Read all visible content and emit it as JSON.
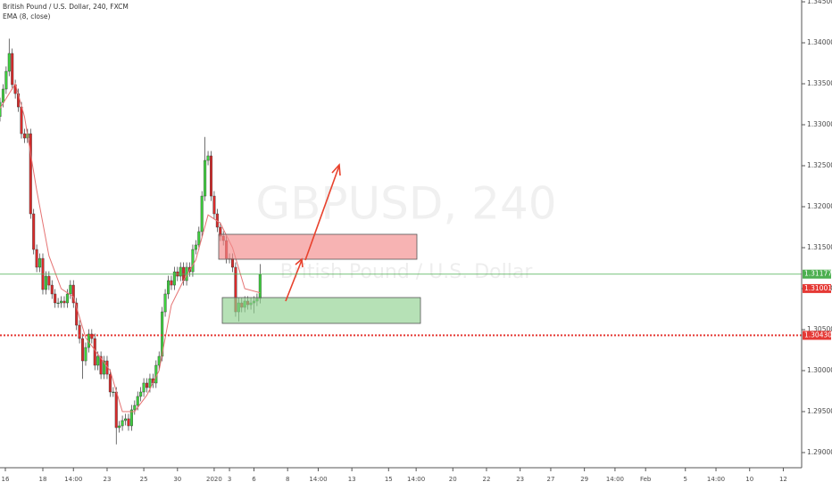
{
  "chart_data": {
    "type": "candlestick",
    "title": "British Pound / U.S. Dollar, 240, FXCM",
    "indicator": "EMA (8, close)",
    "watermark": "GBPUSD, 240",
    "watermark_subtitle": "British Pound / U.S. Dollar",
    "up_color": "#3ed13e",
    "down_color": "#d92b2b",
    "ema_color": "#e57373",
    "xlim": [
      0,
      262
    ],
    "ylim": [
      1.28815,
      1.34522
    ],
    "yticks": [
      {
        "value": 1.345,
        "label": "1.34500"
      },
      {
        "value": 1.34,
        "label": "1.34000"
      },
      {
        "value": 1.335,
        "label": "1.33500"
      },
      {
        "value": 1.33,
        "label": "1.33000"
      },
      {
        "value": 1.325,
        "label": "1.32500"
      },
      {
        "value": 1.32,
        "label": "1.32000"
      },
      {
        "value": 1.315,
        "label": "1.31500"
      },
      {
        "value": 1.31,
        "label": "1.31000"
      },
      {
        "value": 1.305,
        "label": "1.30500"
      },
      {
        "value": 1.3,
        "label": "1.30000"
      },
      {
        "value": 1.295,
        "label": "1.29500"
      },
      {
        "value": 1.29,
        "label": "1.29000"
      }
    ],
    "xticks": [
      {
        "value": 1.75,
        "label": "16"
      },
      {
        "value": 14,
        "label": "18"
      },
      {
        "value": 24,
        "label": "14:00"
      },
      {
        "value": 35,
        "label": "23"
      },
      {
        "value": 47,
        "label": "25"
      },
      {
        "value": 58,
        "label": "30"
      },
      {
        "value": 70,
        "label": "2020"
      },
      {
        "value": 75,
        "label": "3"
      },
      {
        "value": 83,
        "label": "6"
      },
      {
        "value": 94,
        "label": "8"
      },
      {
        "value": 104,
        "label": "14:00"
      },
      {
        "value": 115,
        "label": "13"
      },
      {
        "value": 127,
        "label": "15"
      },
      {
        "value": 136,
        "label": "14:00"
      },
      {
        "value": 148,
        "label": "20"
      },
      {
        "value": 159,
        "label": "22"
      },
      {
        "value": 170,
        "label": "23"
      },
      {
        "value": 180,
        "label": "27"
      },
      {
        "value": 191,
        "label": "29"
      },
      {
        "value": 201,
        "label": "14:00"
      },
      {
        "value": 211,
        "label": "Feb"
      },
      {
        "value": 224,
        "label": "5"
      },
      {
        "value": 234,
        "label": "14:00"
      },
      {
        "value": 245,
        "label": "10"
      },
      {
        "value": 256,
        "label": "12"
      }
    ],
    "x": [
      0,
      1,
      2,
      3,
      4,
      5,
      6,
      7,
      8,
      9,
      10,
      11,
      12,
      13,
      14,
      15,
      16,
      17,
      18,
      19,
      20,
      21,
      22,
      23,
      24,
      25,
      26,
      27,
      28,
      29,
      30,
      31,
      32,
      33,
      34,
      35,
      36,
      37,
      38,
      39,
      40,
      41,
      42,
      43,
      44,
      45,
      46,
      47,
      48,
      49,
      50,
      51,
      52,
      53,
      54,
      55,
      56,
      57,
      58,
      59,
      60,
      61,
      62,
      63,
      64,
      65,
      66,
      67,
      68,
      69,
      70,
      71,
      72,
      73,
      74,
      75,
      76,
      77,
      78,
      79,
      80,
      81,
      82,
      83,
      84,
      85
    ],
    "candles": [
      [
        1.331,
        1.3333,
        1.3304,
        1.33272
      ],
      [
        1.33272,
        1.33495,
        1.33212,
        1.33435
      ],
      [
        1.33435,
        1.33712,
        1.33375,
        1.33652
      ],
      [
        1.33652,
        1.3405,
        1.33592,
        1.3387
      ],
      [
        1.3387,
        1.3393,
        1.33429,
        1.33489
      ],
      [
        1.33489,
        1.33549,
        1.3332,
        1.3338
      ],
      [
        1.3338,
        1.3344,
        1.33157,
        1.33217
      ],
      [
        1.33217,
        1.33277,
        1.32831,
        1.32891
      ],
      [
        1.32891,
        1.32951,
        1.32777,
        1.32837
      ],
      [
        1.32837,
        1.32951,
        1.32777,
        1.32891
      ],
      [
        1.32891,
        1.32951,
        1.31853,
        1.31913
      ],
      [
        1.31913,
        1.31973,
        1.31418,
        1.31478
      ],
      [
        1.31478,
        1.31538,
        1.31201,
        1.31261
      ],
      [
        1.31261,
        1.31429,
        1.31201,
        1.31369
      ],
      [
        1.31369,
        1.31429,
        1.30929,
        1.30989
      ],
      [
        1.30989,
        1.31212,
        1.30929,
        1.31152
      ],
      [
        1.31152,
        1.31212,
        1.30983,
        1.31043
      ],
      [
        1.31043,
        1.31103,
        1.30875,
        1.30935
      ],
      [
        1.30935,
        1.30995,
        1.30766,
        1.30826
      ],
      [
        1.30826,
        1.30886,
        1.30766,
        1.30826
      ],
      [
        1.30826,
        1.30908,
        1.30766,
        1.30848
      ],
      [
        1.30848,
        1.30908,
        1.30766,
        1.30826
      ],
      [
        1.30826,
        1.30995,
        1.30766,
        1.30935
      ],
      [
        1.30935,
        1.31103,
        1.30875,
        1.31043
      ],
      [
        1.31043,
        1.31103,
        1.30766,
        1.30826
      ],
      [
        1.30826,
        1.30886,
        1.30494,
        1.30554
      ],
      [
        1.30554,
        1.30614,
        1.30331,
        1.30391
      ],
      [
        1.30391,
        1.30451,
        1.299,
        1.30119
      ],
      [
        1.30119,
        1.30342,
        1.30059,
        1.30282
      ],
      [
        1.30282,
        1.30506,
        1.30222,
        1.30446
      ],
      [
        1.30446,
        1.30506,
        1.30331,
        1.30391
      ],
      [
        1.30391,
        1.30451,
        1.30005,
        1.30065
      ],
      [
        1.30065,
        1.30234,
        1.30005,
        1.30174
      ],
      [
        1.30174,
        1.30234,
        1.29896,
        1.29956
      ],
      [
        1.29956,
        1.30179,
        1.29896,
        1.30119
      ],
      [
        1.30119,
        1.30179,
        1.29896,
        1.29956
      ],
      [
        1.29956,
        1.30016,
        1.29679,
        1.29739
      ],
      [
        1.29739,
        1.29799,
        1.29679,
        1.29739
      ],
      [
        1.29739,
        1.29799,
        1.291,
        1.29304
      ],
      [
        1.29304,
        1.29386,
        1.29244,
        1.29326
      ],
      [
        1.29326,
        1.29451,
        1.29266,
        1.29391
      ],
      [
        1.29391,
        1.29473,
        1.29331,
        1.29413
      ],
      [
        1.29413,
        1.29473,
        1.29266,
        1.29326
      ],
      [
        1.29326,
        1.29582,
        1.29266,
        1.29522
      ],
      [
        1.29522,
        1.29636,
        1.29462,
        1.29576
      ],
      [
        1.29576,
        1.29745,
        1.29516,
        1.29685
      ],
      [
        1.29685,
        1.29799,
        1.29625,
        1.29739
      ],
      [
        1.29739,
        1.29908,
        1.29679,
        1.29848
      ],
      [
        1.29848,
        1.29908,
        1.29733,
        1.29793
      ],
      [
        1.29793,
        1.29962,
        1.29733,
        1.29902
      ],
      [
        1.29902,
        1.29962,
        1.29788,
        1.29848
      ],
      [
        1.29848,
        1.30125,
        1.29788,
        1.30065
      ],
      [
        1.30065,
        1.30234,
        1.30005,
        1.30174
      ],
      [
        1.30174,
        1.30777,
        1.30114,
        1.30717
      ],
      [
        1.30717,
        1.30995,
        1.30657,
        1.30935
      ],
      [
        1.30935,
        1.31158,
        1.30875,
        1.31098
      ],
      [
        1.31098,
        1.31158,
        1.30983,
        1.31043
      ],
      [
        1.31043,
        1.31266,
        1.30983,
        1.31206
      ],
      [
        1.31206,
        1.31266,
        1.31092,
        1.31152
      ],
      [
        1.31152,
        1.31321,
        1.31092,
        1.31261
      ],
      [
        1.31261,
        1.31321,
        1.31038,
        1.31098
      ],
      [
        1.31098,
        1.31321,
        1.31038,
        1.31261
      ],
      [
        1.31261,
        1.31321,
        1.31146,
        1.31206
      ],
      [
        1.31206,
        1.31538,
        1.31146,
        1.31478
      ],
      [
        1.31478,
        1.31593,
        1.31418,
        1.31533
      ],
      [
        1.31533,
        1.31756,
        1.31473,
        1.31696
      ],
      [
        1.31696,
        1.3219,
        1.31636,
        1.3213
      ],
      [
        1.3213,
        1.3285,
        1.3207,
        1.32565
      ],
      [
        1.32565,
        1.3268,
        1.32505,
        1.3262
      ],
      [
        1.3262,
        1.3268,
        1.3207,
        1.3213
      ],
      [
        1.3213,
        1.3219,
        1.31853,
        1.31913
      ],
      [
        1.31913,
        1.31973,
        1.3169,
        1.3175
      ],
      [
        1.3175,
        1.3181,
        1.31581,
        1.31641
      ],
      [
        1.31641,
        1.31701,
        1.31527,
        1.31587
      ],
      [
        1.31587,
        1.31647,
        1.31309,
        1.31369
      ],
      [
        1.31369,
        1.31429,
        1.31309,
        1.31369
      ],
      [
        1.31369,
        1.31429,
        1.31201,
        1.31261
      ],
      [
        1.31261,
        1.31321,
        1.30657,
        1.30717
      ],
      [
        1.30717,
        1.30886,
        1.306,
        1.30826
      ],
      [
        1.30826,
        1.30886,
        1.30712,
        1.30772
      ],
      [
        1.30772,
        1.30908,
        1.30712,
        1.30848
      ],
      [
        1.30848,
        1.30908,
        1.30744,
        1.30804
      ],
      [
        1.30804,
        1.30886,
        1.30744,
        1.30826
      ],
      [
        1.30826,
        1.30908,
        1.307,
        1.30848
      ],
      [
        1.30848,
        1.3094,
        1.30788,
        1.3088
      ],
      [
        1.3088,
        1.313,
        1.3082,
        1.31174
      ]
    ],
    "ema": {
      "x": [
        0,
        5,
        8,
        12,
        16,
        20,
        24,
        28,
        32,
        36,
        40,
        44,
        48,
        52,
        56,
        60,
        64,
        68,
        72,
        76,
        80,
        85
      ],
      "values": [
        1.332,
        1.335,
        1.331,
        1.322,
        1.314,
        1.31,
        1.309,
        1.304,
        1.302,
        1.3,
        1.295,
        1.295,
        1.297,
        1.3,
        1.308,
        1.311,
        1.3135,
        1.319,
        1.318,
        1.315,
        1.31,
        1.3095
      ]
    },
    "price_labels": [
      {
        "value": 1.31177,
        "label": "1.31177",
        "color": "#4caf50",
        "line": "solid"
      },
      {
        "value": 1.31001,
        "label": "1.31001",
        "color": "#e53935"
      },
      {
        "value": 1.3043,
        "label": "1.30430",
        "color": "#e53935",
        "line": "dotted"
      }
    ]
  }
}
